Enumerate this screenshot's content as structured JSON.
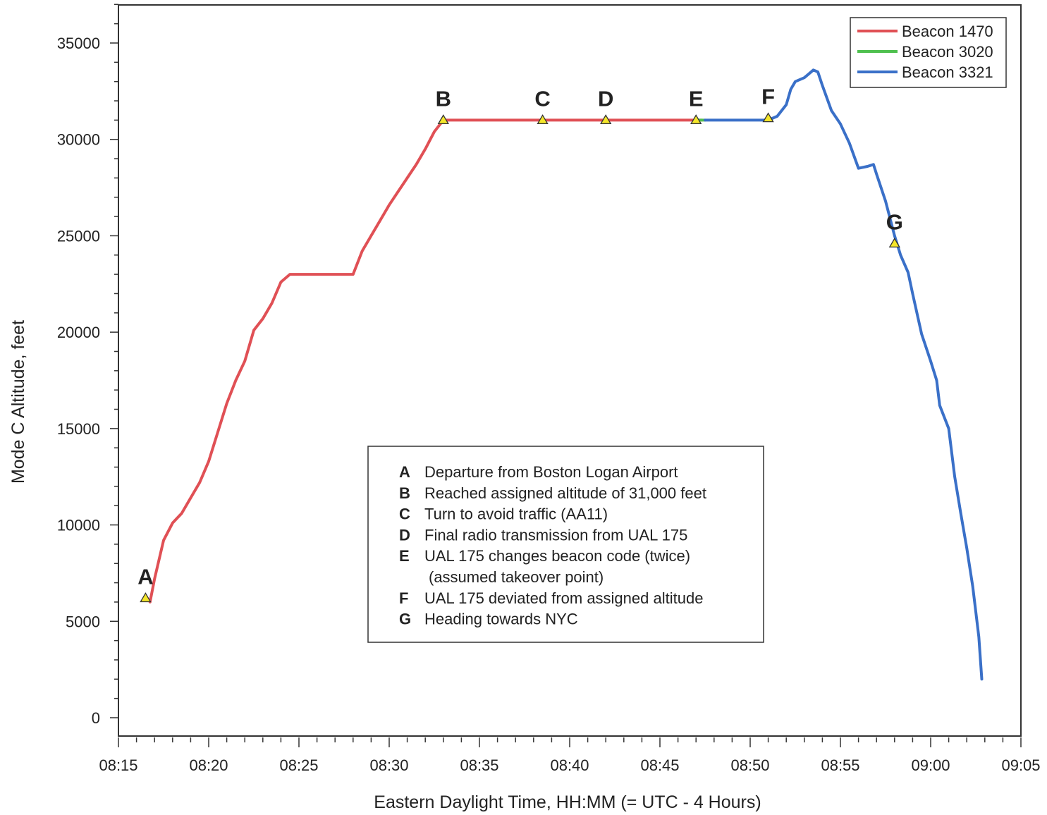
{
  "chart_data": {
    "type": "line",
    "title": "",
    "xlabel": "Eastern Daylight Time, HH:MM (= UTC - 4 Hours)",
    "ylabel": "Mode C Altitude, feet",
    "xlim": [
      "08:15",
      "09:05"
    ],
    "ylim": [
      0,
      37000
    ],
    "x_tick_labels": [
      "08:15",
      "08:20",
      "08:25",
      "08:30",
      "08:35",
      "08:40",
      "08:45",
      "08:50",
      "08:55",
      "09:00",
      "09:05"
    ],
    "y_tick_labels": [
      "0",
      "5000",
      "10000",
      "15000",
      "20000",
      "25000",
      "30000",
      "35000"
    ],
    "legend": {
      "position": "top-right",
      "entries": [
        {
          "name": "Beacon 1470",
          "color": "#e05055"
        },
        {
          "name": "Beacon 3020",
          "color": "#4fc04f"
        },
        {
          "name": "Beacon 3321",
          "color": "#3a70c8"
        }
      ]
    },
    "series": [
      {
        "name": "Beacon 1470",
        "color": "#e05055",
        "points": [
          [
            "08:16:45",
            6000
          ],
          [
            "08:17:00",
            7200
          ],
          [
            "08:17:30",
            9200
          ],
          [
            "08:18:00",
            10100
          ],
          [
            "08:18:30",
            10600
          ],
          [
            "08:19:00",
            11400
          ],
          [
            "08:19:30",
            12200
          ],
          [
            "08:20:00",
            13300
          ],
          [
            "08:20:30",
            14800
          ],
          [
            "08:21:00",
            16300
          ],
          [
            "08:21:30",
            17500
          ],
          [
            "08:22:00",
            18500
          ],
          [
            "08:22:30",
            20100
          ],
          [
            "08:23:00",
            20700
          ],
          [
            "08:23:30",
            21500
          ],
          [
            "08:24:00",
            22600
          ],
          [
            "08:24:30",
            23000
          ],
          [
            "08:26:00",
            23000
          ],
          [
            "08:27:00",
            23000
          ],
          [
            "08:28:00",
            23000
          ],
          [
            "08:28:30",
            24200
          ],
          [
            "08:29:00",
            25000
          ],
          [
            "08:29:30",
            25800
          ],
          [
            "08:30:00",
            26600
          ],
          [
            "08:30:30",
            27300
          ],
          [
            "08:31:00",
            28000
          ],
          [
            "08:31:30",
            28700
          ],
          [
            "08:32:00",
            29500
          ],
          [
            "08:32:30",
            30400
          ],
          [
            "08:33:00",
            31000
          ],
          [
            "08:35:00",
            31000
          ],
          [
            "08:38:00",
            31000
          ],
          [
            "08:42:00",
            31000
          ],
          [
            "08:45:00",
            31000
          ],
          [
            "08:47:20",
            31000
          ]
        ]
      },
      {
        "name": "Beacon 3020",
        "color": "#4fc04f",
        "points": [
          [
            "08:47:10",
            31000
          ],
          [
            "08:47:30",
            31000
          ]
        ]
      },
      {
        "name": "Beacon 3321",
        "color": "#3a70c8",
        "points": [
          [
            "08:47:30",
            31000
          ],
          [
            "08:49:00",
            31000
          ],
          [
            "08:51:00",
            31000
          ],
          [
            "08:51:30",
            31200
          ],
          [
            "08:52:00",
            31800
          ],
          [
            "08:52:15",
            32600
          ],
          [
            "08:52:30",
            33000
          ],
          [
            "08:53:00",
            33200
          ],
          [
            "08:53:30",
            33600
          ],
          [
            "08:53:45",
            33500
          ],
          [
            "08:54:00",
            32800
          ],
          [
            "08:54:30",
            31500
          ],
          [
            "08:55:00",
            30800
          ],
          [
            "08:55:30",
            29800
          ],
          [
            "08:56:00",
            28500
          ],
          [
            "08:56:30",
            28600
          ],
          [
            "08:56:50",
            28700
          ],
          [
            "08:57:00",
            28200
          ],
          [
            "08:57:30",
            26800
          ],
          [
            "08:58:00",
            25000
          ],
          [
            "08:58:20",
            24000
          ],
          [
            "08:58:45",
            23100
          ],
          [
            "08:59:00",
            22000
          ],
          [
            "08:59:30",
            19900
          ],
          [
            "09:00:00",
            18500
          ],
          [
            "09:00:20",
            17500
          ],
          [
            "09:00:30",
            16200
          ],
          [
            "09:01:00",
            15000
          ],
          [
            "09:01:20",
            12500
          ],
          [
            "09:01:40",
            10600
          ],
          [
            "09:02:00",
            8800
          ],
          [
            "09:02:20",
            6800
          ],
          [
            "09:02:40",
            4200
          ],
          [
            "09:02:50",
            2000
          ]
        ]
      }
    ],
    "markers": [
      {
        "label": "A",
        "time": "08:16:30",
        "altitude": 6200
      },
      {
        "label": "B",
        "time": "08:33:00",
        "altitude": 31000
      },
      {
        "label": "C",
        "time": "08:38:30",
        "altitude": 31000
      },
      {
        "label": "D",
        "time": "08:42:00",
        "altitude": 31000
      },
      {
        "label": "E",
        "time": "08:47:00",
        "altitude": 31000
      },
      {
        "label": "F",
        "time": "08:51:00",
        "altitude": 31100
      },
      {
        "label": "G",
        "time": "08:58:00",
        "altitude": 24600
      }
    ],
    "annotations": [
      {
        "letter": "A",
        "text": "Departure from Boston Logan Airport"
      },
      {
        "letter": "B",
        "text": "Reached assigned altitude of 31,000 feet"
      },
      {
        "letter": "C",
        "text": "Turn to avoid traffic (AA11)"
      },
      {
        "letter": "D",
        "text": "Final radio transmission from UAL 175"
      },
      {
        "letter": "E",
        "text": "UAL 175 changes beacon code (twice)"
      },
      {
        "letter": "",
        "text": "(assumed takeover point)"
      },
      {
        "letter": "F",
        "text": "UAL 175 deviated from assigned altitude"
      },
      {
        "letter": "G",
        "text": "Heading towards NYC"
      }
    ]
  }
}
